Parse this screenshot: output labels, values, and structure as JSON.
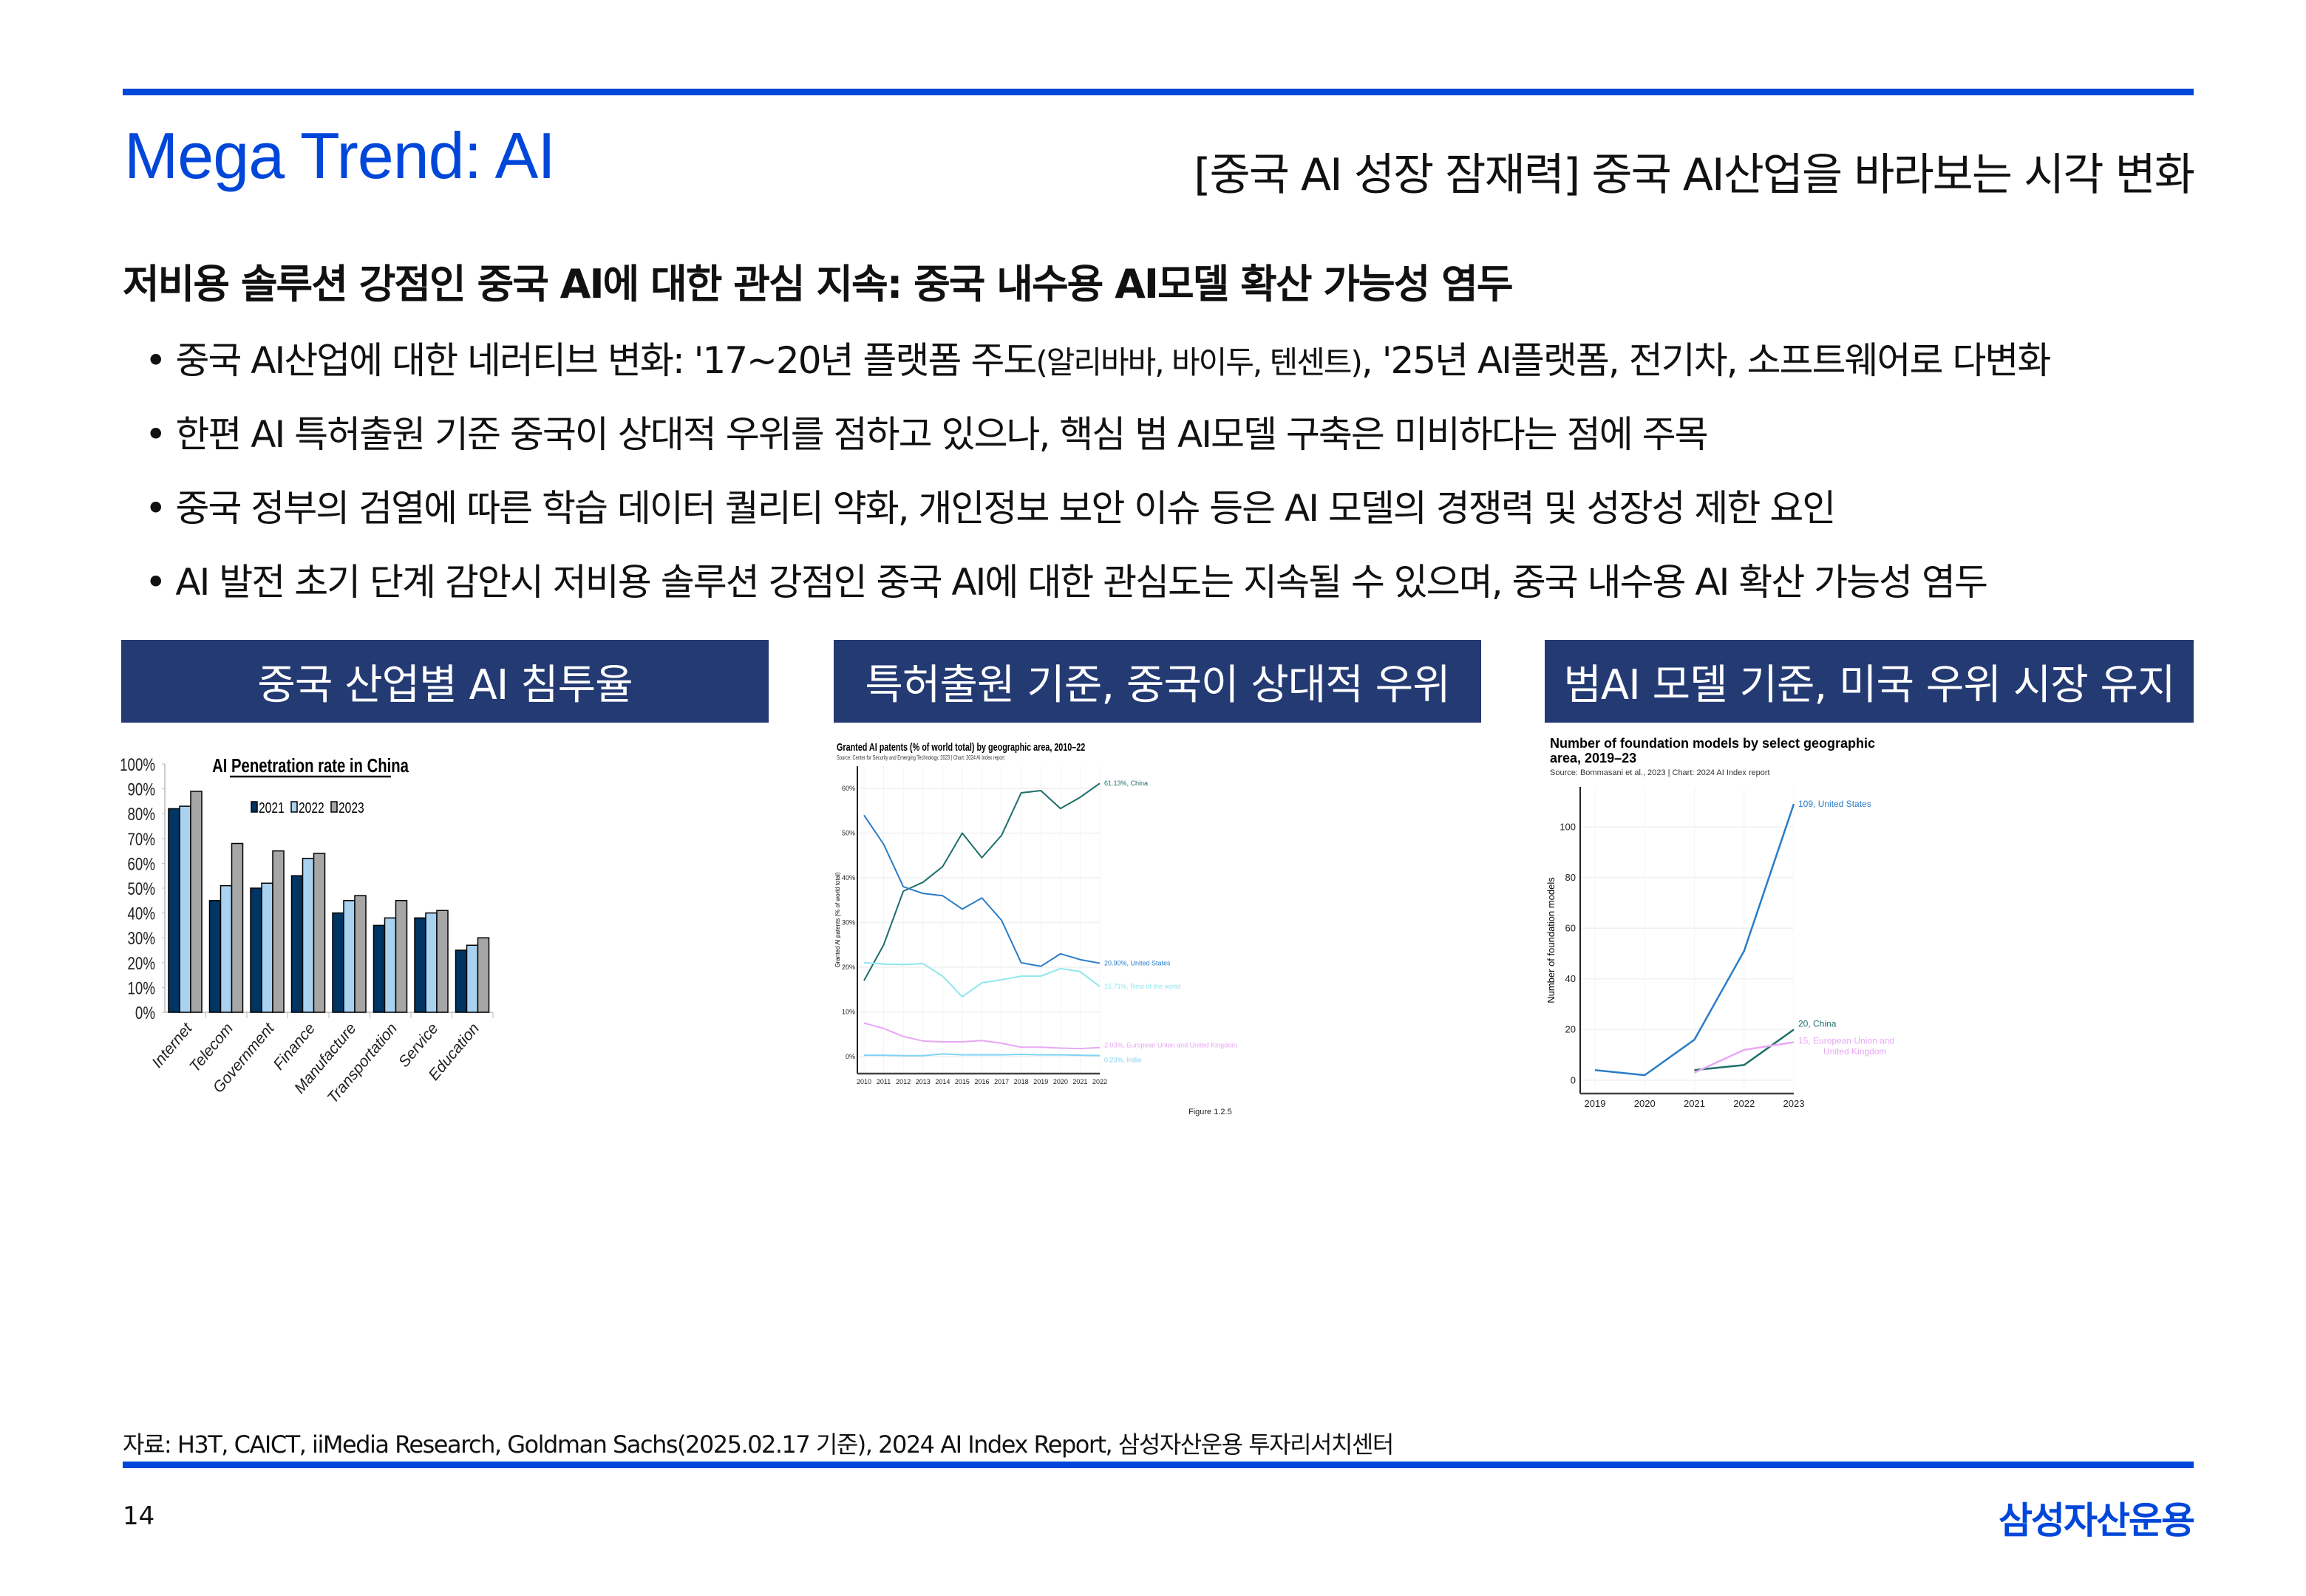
{
  "header": {
    "title": "Mega Trend: AI",
    "right_title": "[중국 AI 성장 잠재력] 중국 AI산업을 바라보는 시각 변화"
  },
  "subtitle": "저비용 솔루션 강점인 중국 AI에 대한 관심 지속: 중국 내수용 AI모델 확산 가능성 염두",
  "bullets": [
    {
      "pre": "• 중국 AI산업에 대한 네러티브 변화: '17~20년 플랫폼 주도",
      "small": "(알리바바, 바이두, 텐센트)",
      "post": ", '25년 AI플랫폼, 전기차, 소프트웨어로 다변화"
    },
    {
      "pre": "• 한편 AI 특허출원 기준 중국이 상대적 우위를 점하고 있으나, 핵심 범 AI모델 구축은 미비하다는 점에 주목",
      "small": "",
      "post": ""
    },
    {
      "pre": "• 중국 정부의 검열에 따른 학습 데이터 퀄리티 약화, 개인정보 보안 이슈 등은 AI 모델의 경쟁력 및 성장성 제한 요인",
      "small": "",
      "post": ""
    },
    {
      "pre": "• AI 발전 초기 단계 감안시 저비용 솔루션 강점인 중국 AI에 대한 관심도는 지속될 수 있으며, 중국 내수용 AI 확산 가능성 염두",
      "small": "",
      "post": ""
    }
  ],
  "panels": [
    "중국 산업별 AI 침투율",
    "특허출원 기준, 중국이 상대적 우위",
    "범AI 모델 기준, 미국 우위 시장 유지"
  ],
  "source": "자료: H3T, CAICT, iiMedia Research, Goldman Sachs(2025.02.17 기준), 2024 AI Index Report, 삼성자산운용 투자리서치센터",
  "page_number": "14",
  "logo": "삼성자산운용",
  "colors": {
    "brand": "#0047d9",
    "panel": "#233a73"
  },
  "chart_data": [
    {
      "type": "bar",
      "title": "AI Penetration rate in China",
      "ylim": [
        0,
        100
      ],
      "yticks": [
        "0%",
        "10%",
        "20%",
        "30%",
        "40%",
        "50%",
        "60%",
        "70%",
        "80%",
        "90%",
        "100%"
      ],
      "categories": [
        "Internet",
        "Telecom",
        "Government",
        "Finance",
        "Manufacture",
        "Transportation",
        "Service",
        "Education"
      ],
      "series": [
        {
          "name": "2021",
          "color": "#003462",
          "values": [
            82,
            45,
            50,
            55,
            40,
            35,
            38,
            25
          ]
        },
        {
          "name": "2022",
          "color": "#a9d1f0",
          "values": [
            83,
            51,
            52,
            62,
            45,
            38,
            40,
            27
          ]
        },
        {
          "name": "2023",
          "color": "#a6a6a6",
          "values": [
            89,
            68,
            65,
            64,
            47,
            45,
            41,
            30
          ]
        }
      ]
    },
    {
      "type": "line",
      "title": "Granted AI patents (% of world total) by geographic area, 2010–22",
      "subtitle": "Source: Center for Security and Emerging Technology, 2023 | Chart: 2024 AI Index report",
      "ylabel": "Granted AI patents (% of world total)",
      "ylim": [
        -4,
        68
      ],
      "yticks": [
        0,
        10,
        20,
        30,
        40,
        50,
        60
      ],
      "ytick_labels": [
        "0%",
        "10%",
        "20%",
        "30%",
        "40%",
        "50%",
        "60%"
      ],
      "x": [
        2010,
        2011,
        2012,
        2013,
        2014,
        2015,
        2016,
        2017,
        2018,
        2019,
        2020,
        2021,
        2022
      ],
      "note": "Figure 1.2.5",
      "series": [
        {
          "name": "China",
          "label": "61.13%, China",
          "color": "#1e6e6a",
          "values": [
            17,
            25,
            37,
            39,
            42.5,
            50,
            44.5,
            49.5,
            59,
            59.5,
            55.5,
            58,
            61.13
          ]
        },
        {
          "name": "United States",
          "label": "20.90%, United States",
          "color": "#2a7cc7",
          "values": [
            54,
            47.5,
            38,
            36.5,
            36,
            33,
            35.5,
            30.5,
            21,
            20.2,
            23,
            21.7,
            20.9
          ]
        },
        {
          "name": "Rest of the world",
          "label": "15.71%, Rest of the world",
          "color": "#8fe6ef",
          "values": [
            21,
            20.7,
            20.6,
            20.8,
            18,
            13.4,
            16.5,
            17.2,
            18,
            18,
            19.7,
            19,
            15.71
          ]
        },
        {
          "name": "European Union and United Kingdom",
          "label": "2.03%, European Union and United Kingdom",
          "color": "#e8a7f5",
          "values": [
            7.5,
            6.3,
            4.5,
            3.5,
            3.3,
            3.3,
            3.6,
            3,
            2.1,
            2.1,
            1.9,
            1.8,
            2.03
          ]
        },
        {
          "name": "India",
          "label": "0.23%, India",
          "color": "#7fd3f5",
          "values": [
            0.3,
            0.3,
            0.2,
            0.2,
            0.6,
            0.4,
            0.4,
            0.4,
            0.5,
            0.4,
            0.4,
            0.3,
            0.23
          ]
        }
      ]
    },
    {
      "type": "line",
      "title": "Number of foundation models by select geographic area, 2019–23",
      "title_lines": [
        "Number of foundation models by select geographic",
        "area, 2019–23"
      ],
      "subtitle": "Source: Bommasani et al., 2023 | Chart: 2024 AI Index report",
      "ylabel": "Number of foundation models",
      "ylim": [
        -5,
        115
      ],
      "yticks": [
        0,
        20,
        40,
        60,
        80,
        100
      ],
      "ytick_labels": [
        "0",
        "20",
        "40",
        "60",
        "80",
        "100"
      ],
      "x": [
        2019,
        2020,
        2021,
        2022,
        2023
      ],
      "series": [
        {
          "name": "United States",
          "label": "109, United States",
          "color": "#2a7cc7",
          "values": [
            4,
            2,
            16,
            51,
            109
          ]
        },
        {
          "name": "China",
          "label": "20, China",
          "color": "#1e6e6a",
          "values": [
            null,
            null,
            4,
            6,
            20
          ]
        },
        {
          "name": "European Union and United Kingdom",
          "label": "15, European Union and",
          "label2": "United Kingdom",
          "color": "#e8a7f5",
          "values": [
            null,
            null,
            3,
            12,
            15
          ]
        }
      ]
    }
  ]
}
